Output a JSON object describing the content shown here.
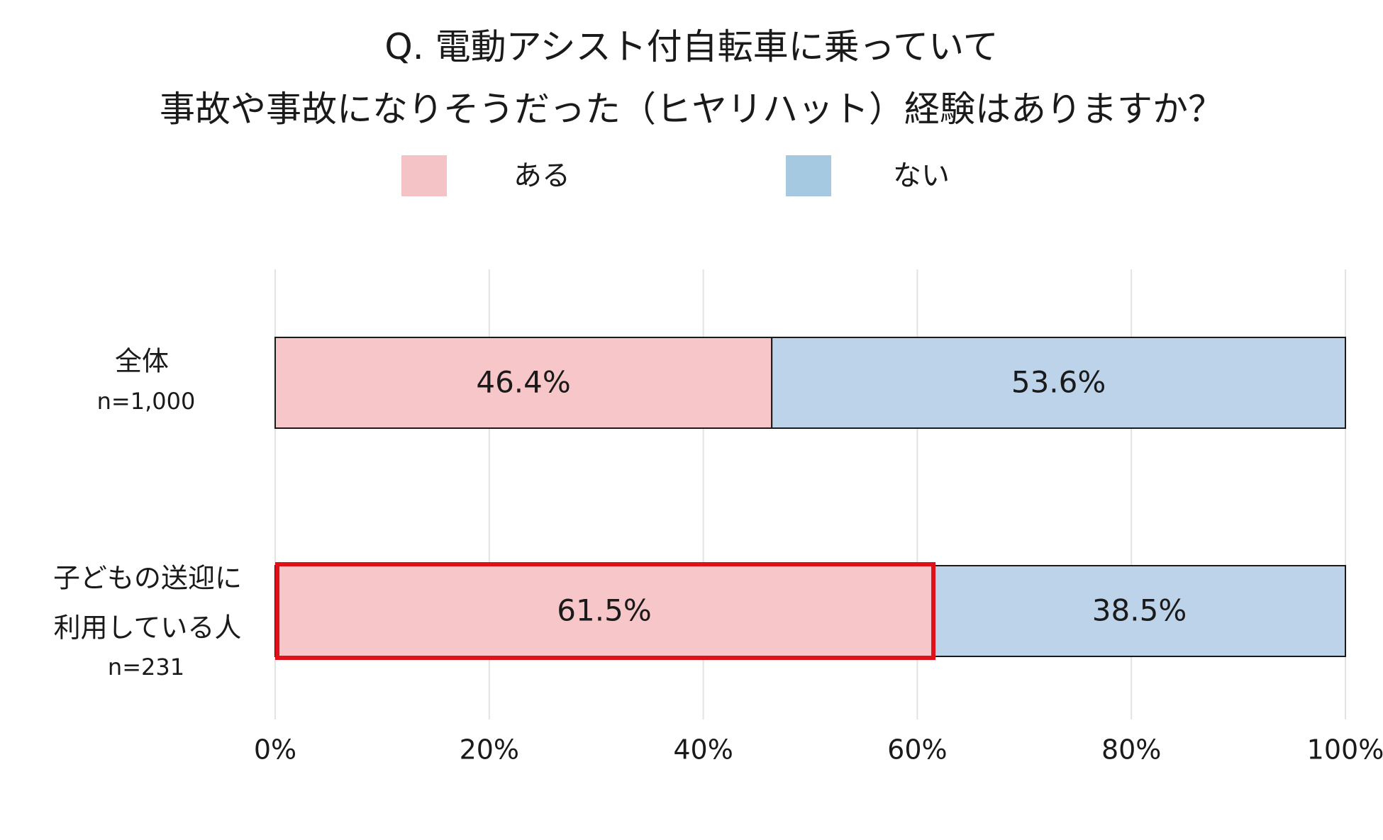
{
  "chart_data": {
    "type": "bar",
    "stacked": true,
    "orientation": "horizontal",
    "title": "Q. 電動アシスト付自転車に乗っていて",
    "subtitle": "事故や事故になりそうだった（ヒヤリハット）経験はありますか？",
    "categories": [
      {
        "label": "全体",
        "sublabel": "n=1,000"
      },
      {
        "label": "子どもの送迎に",
        "label2": "利用している人",
        "sublabel": "n=231"
      }
    ],
    "series": [
      {
        "name": "ある",
        "values": [
          46.4,
          61.5
        ],
        "labels": [
          "46.4%",
          "61.5%"
        ],
        "color": "#f6c6c8"
      },
      {
        "name": "ない",
        "values": [
          53.6,
          38.5
        ],
        "labels": [
          "53.6%",
          "38.5%"
        ],
        "color": "#bcd3e9"
      }
    ],
    "xlim": [
      0,
      100
    ],
    "xticks": [
      0,
      20,
      40,
      60,
      80,
      100
    ],
    "xtick_labels": [
      "0%",
      "20%",
      "40%",
      "60%",
      "80%",
      "100%"
    ],
    "grid": true,
    "legend_position": "top",
    "highlight": {
      "category_index": 1,
      "series_index": 0,
      "color": "#e0101b"
    }
  },
  "legend_colors": {
    "aru_swatch": "#f3c3c5",
    "nai_swatch": "#a4c9e1"
  }
}
